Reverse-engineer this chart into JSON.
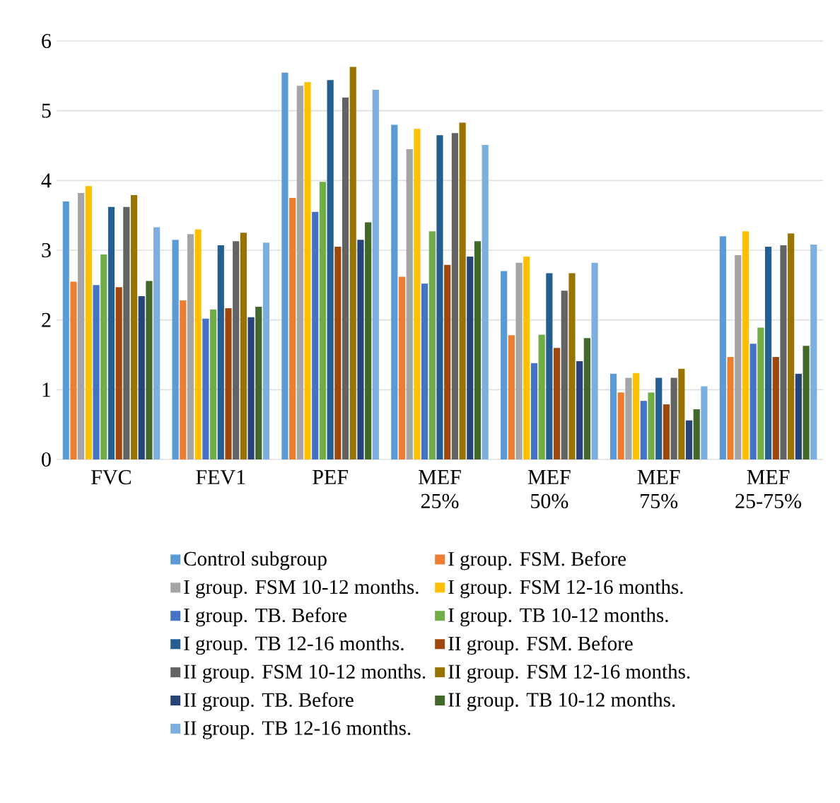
{
  "chart_data": {
    "type": "bar",
    "categories": [
      "FVC",
      "FEV1",
      "PEF",
      "MEF 25%",
      "MEF 50%",
      "MEF 75%",
      "MEF 25-75%"
    ],
    "ylim": [
      0,
      6
    ],
    "yticks": [
      0,
      1,
      2,
      3,
      4,
      5,
      6
    ],
    "grid": "y",
    "legend": "bottom",
    "series": [
      {
        "name": "Control subgroup",
        "color": "#5b9bd5",
        "values": [
          3.7,
          3.15,
          5.55,
          4.8,
          2.7,
          1.23,
          3.2
        ]
      },
      {
        "name": "I group. FSM. Before",
        "color": "#ed7d31",
        "values": [
          2.55,
          2.28,
          3.75,
          2.62,
          1.78,
          0.96,
          1.47
        ]
      },
      {
        "name": "I group. FSM 10-12 months.",
        "color": "#a5a5a5",
        "values": [
          3.82,
          3.23,
          5.36,
          4.45,
          2.82,
          1.17,
          2.93
        ]
      },
      {
        "name": "I group. FSM 12-16 months.",
        "color": "#ffc000",
        "values": [
          3.92,
          3.3,
          5.41,
          4.74,
          2.91,
          1.24,
          3.27
        ]
      },
      {
        "name": "I group. TB. Before",
        "color": "#4472c4",
        "values": [
          2.5,
          2.02,
          3.55,
          2.52,
          1.38,
          0.84,
          1.66
        ]
      },
      {
        "name": "I group. TB 10-12 months.",
        "color": "#70ad47",
        "values": [
          2.94,
          2.15,
          3.98,
          3.27,
          1.79,
          0.96,
          1.89
        ]
      },
      {
        "name": "I group. TB 12-16 months.",
        "color": "#255e91",
        "values": [
          3.62,
          3.07,
          5.44,
          4.65,
          2.67,
          1.17,
          3.05
        ]
      },
      {
        "name": "II group. FSM. Before",
        "color": "#9e480e",
        "values": [
          2.47,
          2.17,
          3.05,
          2.79,
          1.6,
          0.79,
          1.47
        ]
      },
      {
        "name": "II group. FSM 10-12 months.",
        "color": "#636363",
        "values": [
          3.62,
          3.13,
          5.19,
          4.68,
          2.42,
          1.17,
          3.07
        ]
      },
      {
        "name": "II group. FSM 12-16 months.",
        "color": "#997300",
        "values": [
          3.79,
          3.25,
          5.63,
          4.83,
          2.67,
          1.3,
          3.24
        ]
      },
      {
        "name": "II group. TB. Before",
        "color": "#264478",
        "values": [
          2.34,
          2.04,
          3.15,
          2.91,
          1.41,
          0.56,
          1.23
        ]
      },
      {
        "name": "II group. TB 10-12 months.",
        "color": "#43682b",
        "values": [
          2.56,
          2.19,
          3.4,
          3.13,
          1.74,
          0.72,
          1.63
        ]
      },
      {
        "name": "II group. TB 12-16 months.",
        "color": "#7cafdd",
        "values": [
          3.33,
          3.11,
          5.3,
          4.51,
          2.82,
          1.05,
          3.08
        ]
      }
    ]
  }
}
